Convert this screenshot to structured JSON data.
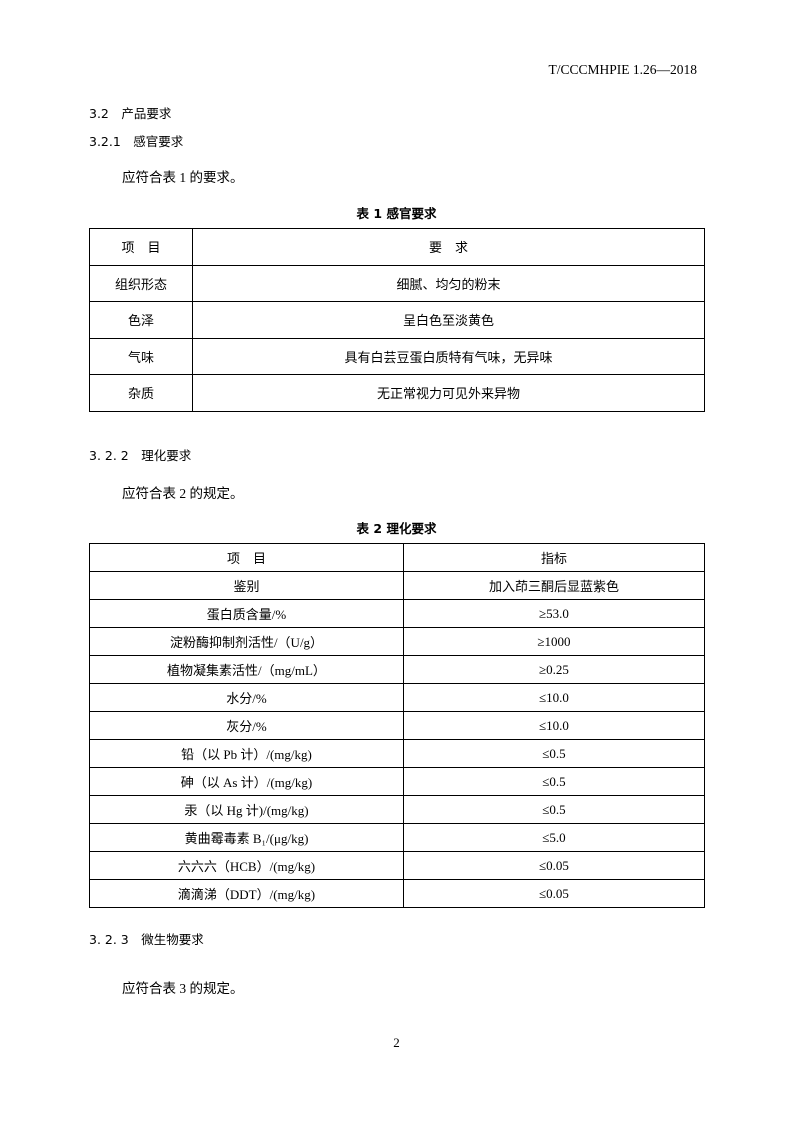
{
  "header": {
    "doc_code": "T/CCCMHPIE 1.26—2018"
  },
  "sections": {
    "s32": "3.2　产品要求",
    "s321": "3.2.1　感官要求",
    "s321_text": "应符合表 1 的要求。",
    "s322": "3. 2. 2　理化要求",
    "s322_text": "应符合表 2 的规定。",
    "s323": "3. 2. 3　微生物要求",
    "s323_text": "应符合表 3 的规定。"
  },
  "table1": {
    "caption": "表 1  感官要求",
    "headers": [
      "项　目",
      "要　求"
    ],
    "rows": [
      [
        "组织形态",
        "细腻、均匀的粉末"
      ],
      [
        "色泽",
        "呈白色至淡黄色"
      ],
      [
        "气味",
        "具有白芸豆蛋白质特有气味，无异味"
      ],
      [
        "杂质",
        "无正常视力可见外来异物"
      ]
    ]
  },
  "table2": {
    "caption": "表 2  理化要求",
    "headers": [
      "项　目",
      "指标"
    ],
    "rows": [
      [
        "鉴别",
        "加入茚三酮后显蓝紫色"
      ],
      [
        "蛋白质含量/%",
        "≥53.0"
      ],
      [
        "淀粉酶抑制剂活性/（U/g）",
        "≥1000"
      ],
      [
        "植物凝集素活性/（mg/mL）",
        "≥0.25"
      ],
      [
        "水分/%",
        "≤10.0"
      ],
      [
        "灰分/%",
        "≤10.0"
      ],
      [
        "铅（以 Pb 计）/(mg/kg)",
        "≤0.5"
      ],
      [
        "砷（以 As 计）/(mg/kg)",
        "≤0.5"
      ],
      [
        "汞（以 Hg 计)/(mg/kg)",
        "≤0.5"
      ],
      [
        "黄曲霉毒素 B₁/(μg/kg)",
        "≤5.0"
      ],
      [
        "六六六（HCB）/(mg/kg)",
        "≤0.05"
      ],
      [
        "滴滴涕（DDT）/(mg/kg)",
        "≤0.05"
      ]
    ]
  },
  "footer": {
    "page_number": "2"
  }
}
